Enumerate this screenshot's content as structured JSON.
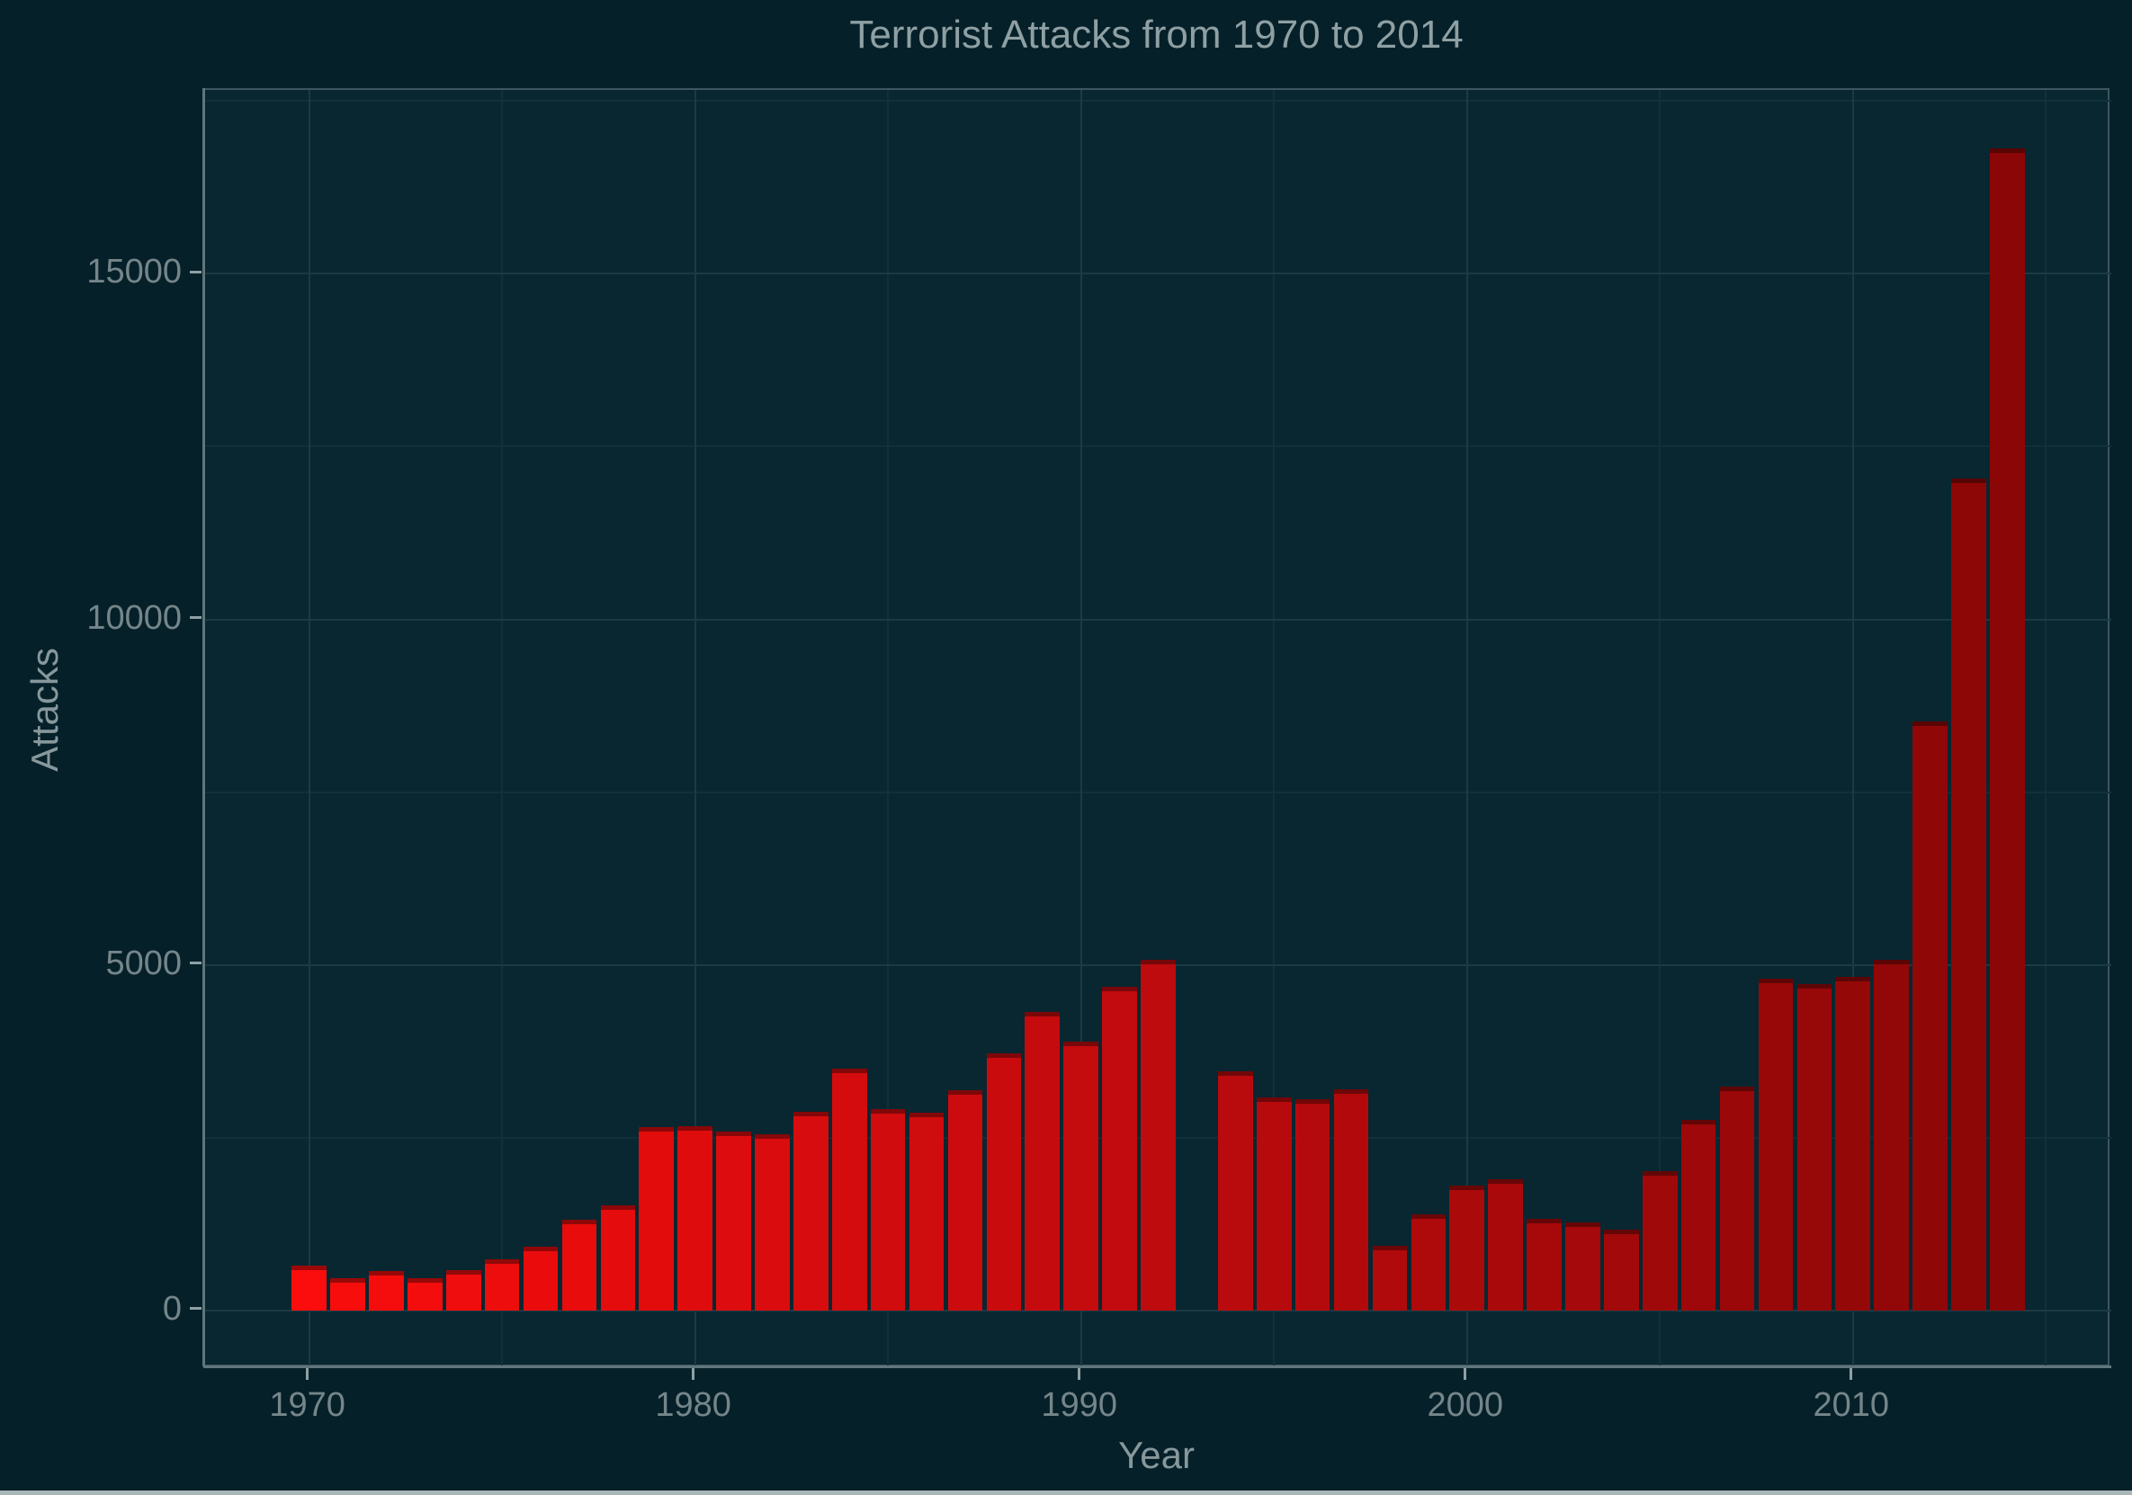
{
  "title": "Terrorist Attacks from 1970 to 2014",
  "chart_data": {
    "type": "bar",
    "title": "Terrorist Attacks from 1970 to 2014",
    "xlabel": "Year",
    "ylabel": "Attacks",
    "x": [
      1970,
      1971,
      1972,
      1973,
      1974,
      1975,
      1976,
      1977,
      1978,
      1979,
      1980,
      1981,
      1982,
      1983,
      1984,
      1985,
      1986,
      1987,
      1988,
      1989,
      1990,
      1991,
      1992,
      1993,
      1994,
      1995,
      1996,
      1997,
      1998,
      1999,
      2000,
      2001,
      2002,
      2003,
      2004,
      2005,
      2006,
      2007,
      2008,
      2009,
      2010,
      2011,
      2012,
      2013,
      2014
    ],
    "values": [
      651,
      471,
      568,
      473,
      581,
      740,
      923,
      1319,
      1526,
      2661,
      2662,
      2586,
      2544,
      2870,
      3495,
      2915,
      2860,
      3183,
      3721,
      4324,
      3887,
      4683,
      5071,
      null,
      3456,
      3081,
      3058,
      3197,
      933,
      1395,
      1814,
      1906,
      1333,
      1278,
      1166,
      2017,
      2758,
      3242,
      4805,
      4721,
      4826,
      5076,
      8522,
      12036,
      16818
    ],
    "missing_year_note": "1993 has no bar (gap in data)",
    "xlim": [
      1967.305,
      2016.695
    ],
    "ylim": [
      -833,
      17659
    ],
    "x_ticks_major": [
      1970,
      1980,
      1990,
      2000,
      2010
    ],
    "x_ticks_minor": [
      1975,
      1985,
      1995,
      2005,
      2015
    ],
    "y_ticks_major": [
      0,
      5000,
      10000,
      15000
    ],
    "y_ticks_minor": [
      2500,
      7500,
      12500,
      17500
    ],
    "bar_width_years": 0.9,
    "legend": "none",
    "grid": "on"
  },
  "colors": {
    "background": "#052029",
    "panel_background": "#082731",
    "grid_major": "#1b3a44",
    "grid_minor": "#11303a",
    "panel_border": "#3e565e",
    "axis_line": "#5f767c",
    "tick_mark": "#8da0a4",
    "tick_text": "#75868a",
    "axis_title_text": "#86989c",
    "title_text": "#8ea0a3",
    "bar_color_1970": "#fb0d0d",
    "bar_color_1992": "#be0b0e",
    "bar_color_2014": "#8b0707",
    "bar_cap": "rgba(40,0,6,0.35)",
    "bottom_strip": "#a9b6b8"
  }
}
